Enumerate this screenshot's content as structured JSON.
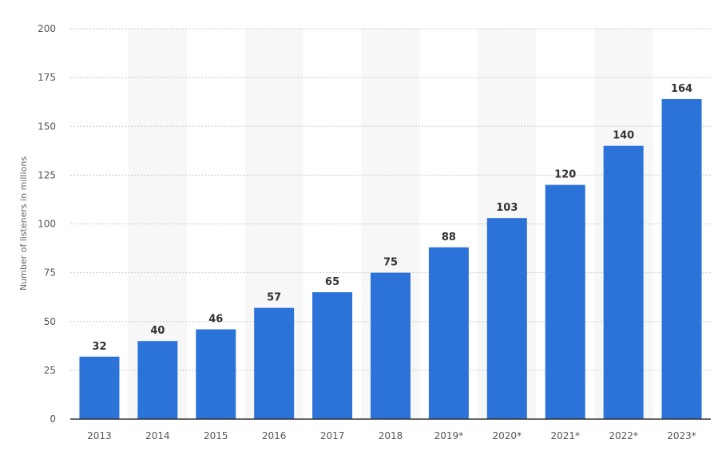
{
  "chart_data": {
    "type": "bar",
    "title": "",
    "xlabel": "",
    "ylabel": "Number of listeners in millions",
    "categories": [
      "2013",
      "2014",
      "2015",
      "2016",
      "2017",
      "2018",
      "2019*",
      "2020*",
      "2021*",
      "2022*",
      "2023*"
    ],
    "values": [
      32,
      40,
      46,
      57,
      65,
      75,
      88,
      103,
      120,
      140,
      164
    ],
    "data_labels": [
      "32",
      "40",
      "46",
      "57",
      "65",
      "75",
      "88",
      "103",
      "120",
      "140",
      "164"
    ],
    "ylim": [
      0,
      200
    ],
    "yticks": [
      "0",
      "25",
      "50",
      "75",
      "100",
      "125",
      "150",
      "175",
      "200"
    ],
    "grid": true,
    "legend": "none",
    "bar_color": "#2b73d9",
    "band_color": "#f7f7f7",
    "grid_color": "#c8c8c8"
  }
}
